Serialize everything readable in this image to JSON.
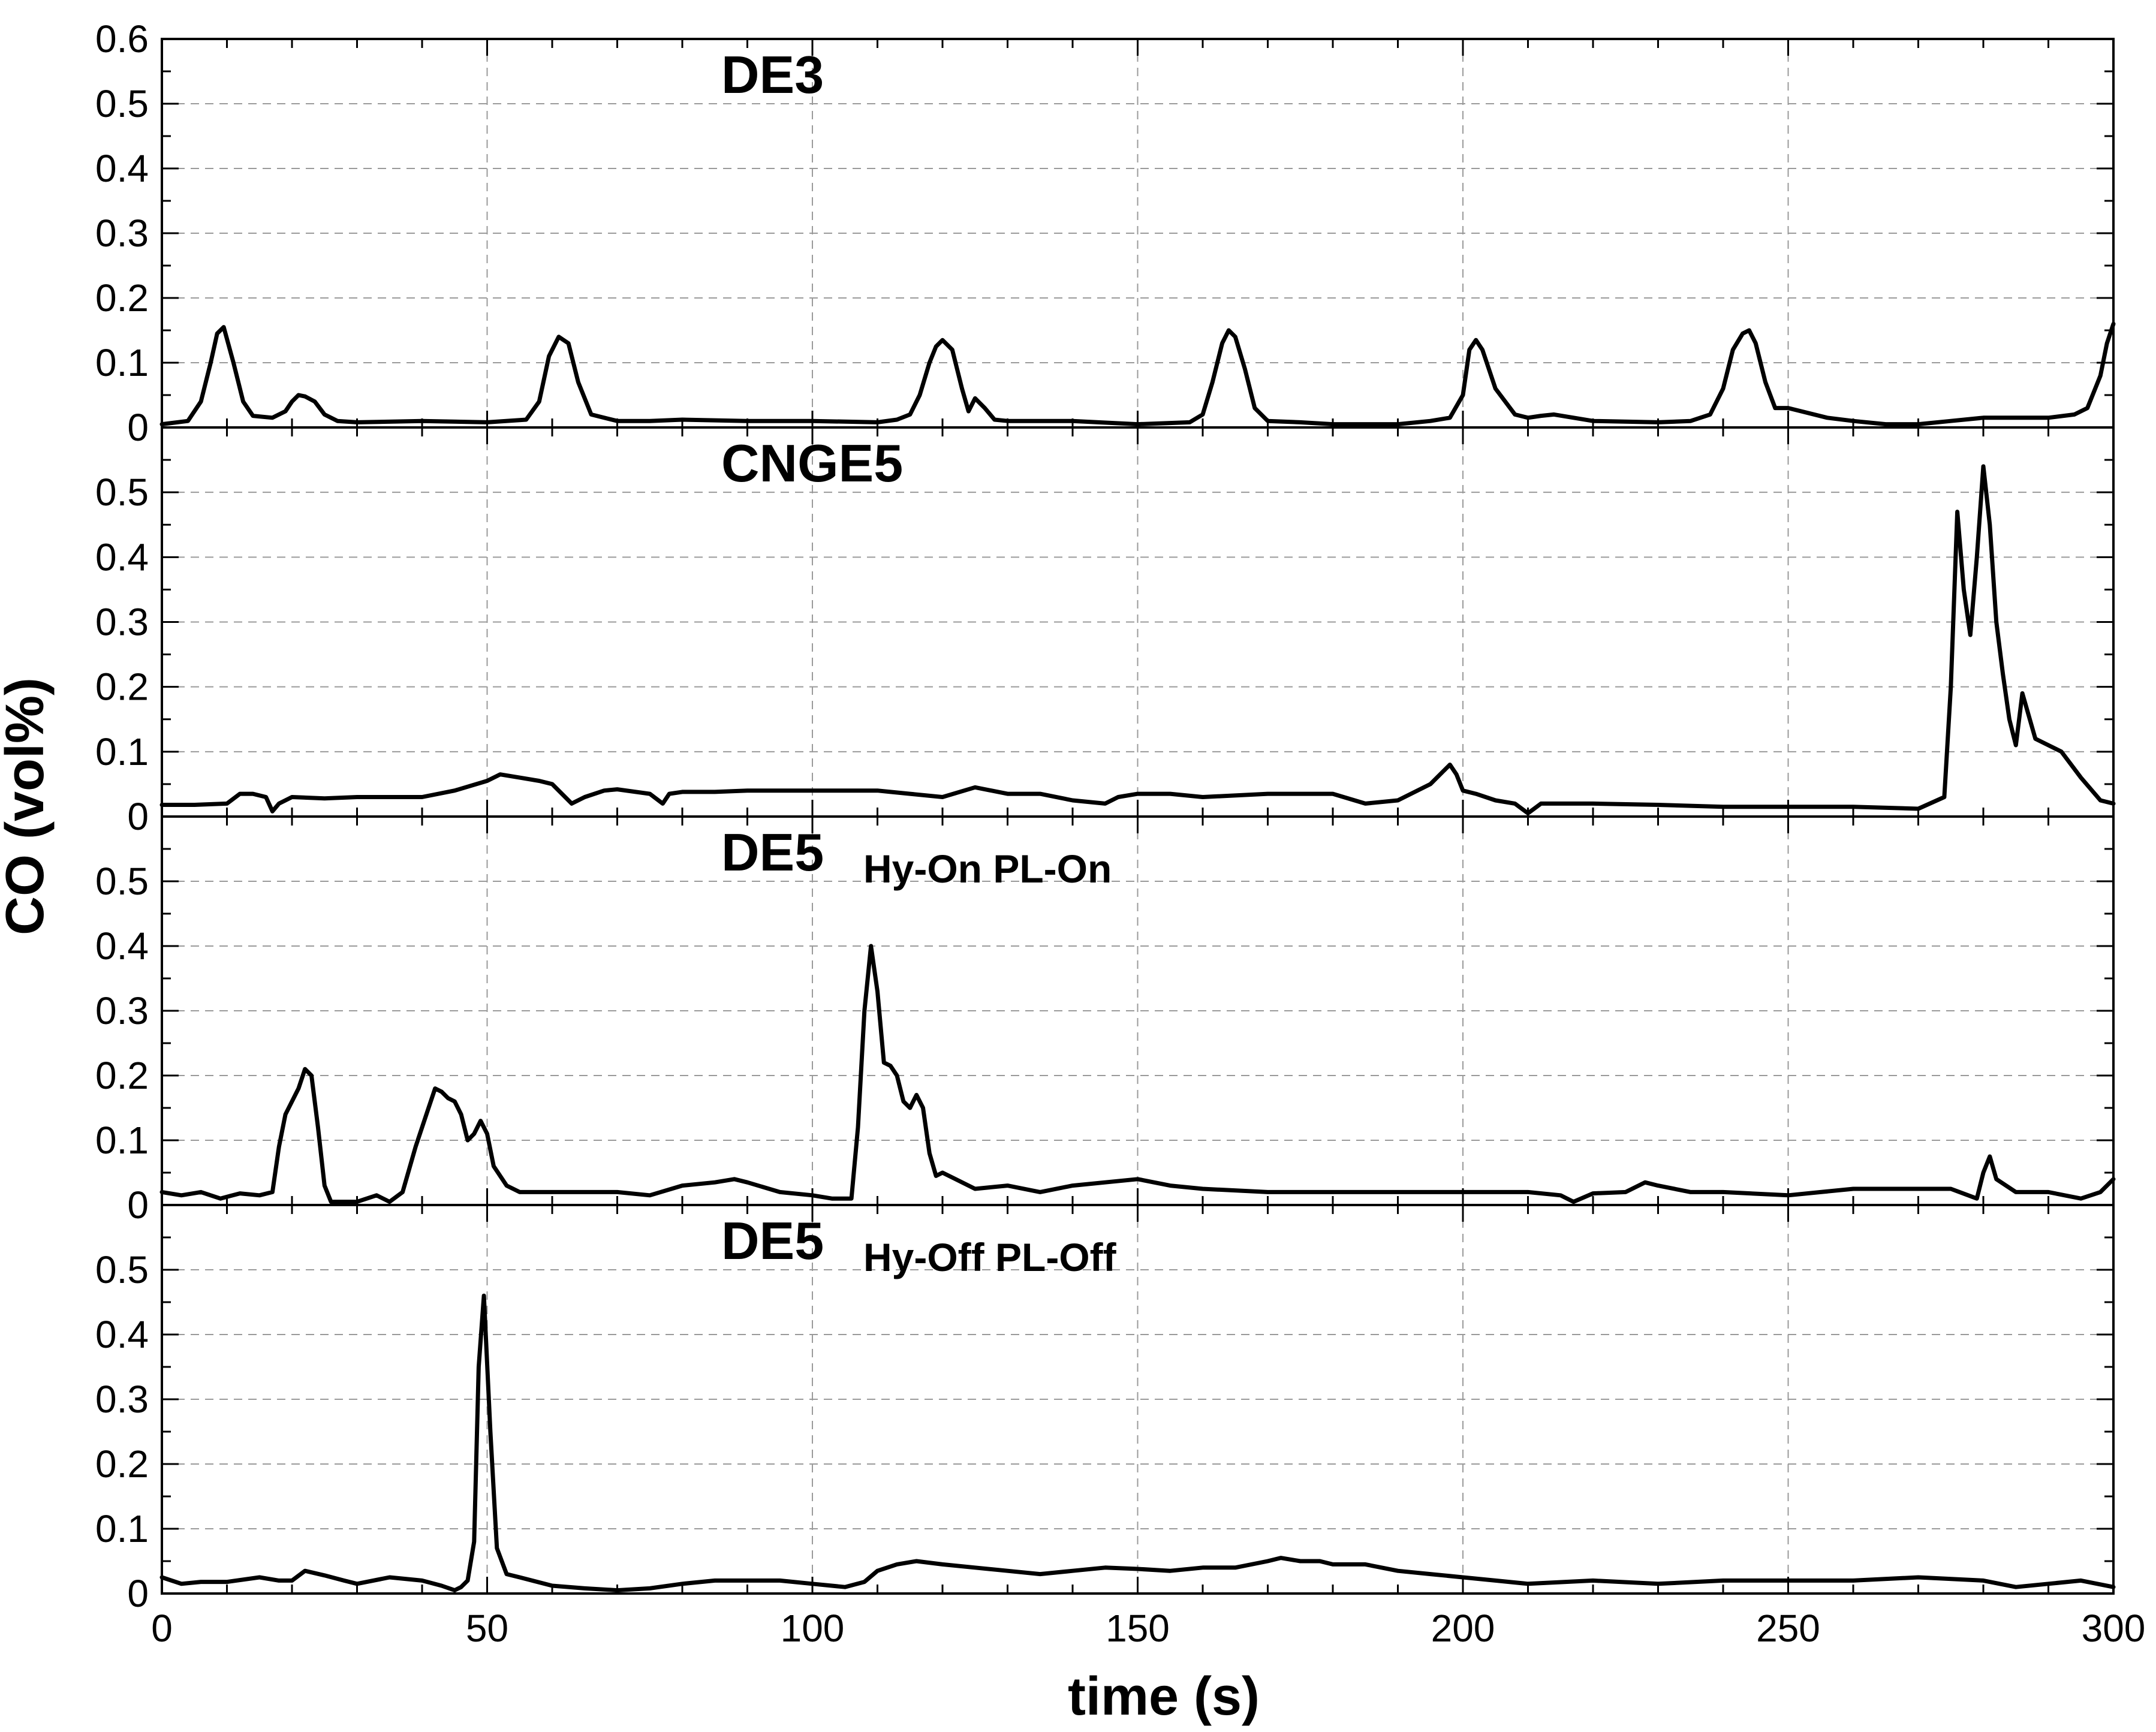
{
  "chart_data": {
    "type": "line",
    "xlabel": "time (s)",
    "ylabel": "CO (vol%)",
    "xlim": [
      0,
      300
    ],
    "xticks": [
      0,
      50,
      100,
      150,
      200,
      250,
      300
    ],
    "grid": true,
    "panels": [
      {
        "title": "DE3",
        "subtitle": "",
        "ylim": [
          0,
          0.6
        ],
        "yticks": [
          0,
          0.1,
          0.2,
          0.3,
          0.4,
          0.5,
          0.6
        ],
        "ytick_labels": [
          "0",
          "0.1",
          "0.2",
          "0.3",
          "0.4",
          "0.5",
          "0.6"
        ],
        "series": [
          {
            "x": [
              0,
              4,
              6,
              7.5,
              8.5,
              9.5,
              11,
              12.5,
              14,
              17,
              19,
              20,
              21,
              22,
              23.5,
              25,
              27,
              30,
              40,
              50,
              56,
              58,
              59.5,
              61,
              62.5,
              64,
              66,
              70,
              75,
              80,
              90,
              100,
              110,
              113,
              115,
              116.5,
              118,
              119,
              120,
              121.5,
              123,
              124,
              125,
              126.5,
              128,
              130,
              140,
              150,
              158,
              160,
              161.5,
              163,
              164,
              165,
              166.5,
              168,
              170,
              175,
              180,
              185,
              190,
              195,
              198,
              200,
              201,
              202,
              203,
              205,
              208,
              210,
              212,
              214,
              220,
              230,
              235,
              238,
              240,
              241.5,
              243,
              244,
              245,
              246.5,
              248,
              250,
              252,
              256,
              260,
              265,
              270,
              275,
              280,
              285,
              290,
              294,
              296,
              298,
              299,
              300
            ],
            "y": [
              0.005,
              0.01,
              0.04,
              0.1,
              0.145,
              0.155,
              0.1,
              0.04,
              0.018,
              0.015,
              0.025,
              0.04,
              0.05,
              0.048,
              0.04,
              0.02,
              0.01,
              0.008,
              0.01,
              0.008,
              0.012,
              0.04,
              0.11,
              0.14,
              0.13,
              0.07,
              0.02,
              0.01,
              0.01,
              0.012,
              0.01,
              0.01,
              0.008,
              0.012,
              0.02,
              0.05,
              0.1,
              0.125,
              0.135,
              0.12,
              0.06,
              0.025,
              0.045,
              0.03,
              0.012,
              0.01,
              0.01,
              0.005,
              0.008,
              0.02,
              0.07,
              0.13,
              0.15,
              0.14,
              0.09,
              0.03,
              0.01,
              0.008,
              0.005,
              0.005,
              0.005,
              0.01,
              0.015,
              0.05,
              0.12,
              0.135,
              0.12,
              0.06,
              0.02,
              0.015,
              0.018,
              0.02,
              0.01,
              0.008,
              0.01,
              0.02,
              0.06,
              0.12,
              0.145,
              0.15,
              0.13,
              0.07,
              0.03,
              0.03,
              0.025,
              0.015,
              0.01,
              0.005,
              0.005,
              0.01,
              0.015,
              0.015,
              0.015,
              0.02,
              0.03,
              0.08,
              0.13,
              0.16
            ]
          }
        ]
      },
      {
        "title": "CNGE5",
        "subtitle": "",
        "ylim": [
          0,
          0.6
        ],
        "yticks": [
          0,
          0.1,
          0.2,
          0.3,
          0.4,
          0.5
        ],
        "ytick_labels": [
          "0",
          "0.1",
          "0.2",
          "0.3",
          "0.4",
          "0.5"
        ],
        "series": [
          {
            "x": [
              0,
              5,
              10,
              12,
              14,
              16,
              17,
              18,
              20,
              25,
              30,
              35,
              40,
              45,
              50,
              52,
              55,
              58,
              60,
              63,
              65,
              68,
              70,
              75,
              77,
              78,
              80,
              85,
              90,
              100,
              110,
              112,
              115,
              120,
              125,
              130,
              135,
              140,
              145,
              147,
              150,
              155,
              160,
              170,
              180,
              185,
              190,
              195,
              197,
              198,
              199,
              200,
              202,
              205,
              208,
              210,
              212,
              220,
              230,
              240,
              250,
              260,
              270,
              274,
              275,
              276,
              277,
              278,
              279,
              280,
              281,
              282,
              283,
              284,
              285,
              286,
              288,
              290,
              292,
              295,
              298,
              300
            ],
            "y": [
              0.018,
              0.018,
              0.02,
              0.035,
              0.035,
              0.03,
              0.008,
              0.02,
              0.03,
              0.028,
              0.03,
              0.03,
              0.03,
              0.04,
              0.055,
              0.065,
              0.06,
              0.055,
              0.05,
              0.02,
              0.03,
              0.04,
              0.042,
              0.035,
              0.02,
              0.035,
              0.038,
              0.038,
              0.04,
              0.04,
              0.04,
              0.038,
              0.035,
              0.03,
              0.045,
              0.035,
              0.035,
              0.025,
              0.02,
              0.03,
              0.035,
              0.035,
              0.03,
              0.035,
              0.035,
              0.02,
              0.025,
              0.05,
              0.07,
              0.08,
              0.065,
              0.04,
              0.035,
              0.025,
              0.02,
              0.005,
              0.02,
              0.02,
              0.018,
              0.015,
              0.015,
              0.015,
              0.012,
              0.03,
              0.2,
              0.47,
              0.35,
              0.28,
              0.4,
              0.54,
              0.45,
              0.3,
              0.22,
              0.15,
              0.11,
              0.19,
              0.12,
              0.11,
              0.1,
              0.06,
              0.025,
              0.02
            ]
          }
        ]
      },
      {
        "title": "DE5",
        "subtitle": "Hy-On PL-On",
        "ylim": [
          0,
          0.6
        ],
        "yticks": [
          0,
          0.1,
          0.2,
          0.3,
          0.4,
          0.5
        ],
        "ytick_labels": [
          "0",
          "0.1",
          "0.2",
          "0.3",
          "0.4",
          "0.5"
        ],
        "series": [
          {
            "x": [
              0,
              3,
              6,
              9,
              12,
              15,
              17,
              18,
              19,
              20,
              21,
              22,
              23,
              24,
              25,
              26,
              27,
              30,
              33,
              35,
              37,
              39,
              40,
              41,
              42,
              43,
              44,
              45,
              46,
              47,
              48,
              49,
              50,
              51,
              53,
              55,
              60,
              65,
              70,
              75,
              80,
              85,
              88,
              90,
              95,
              100,
              103,
              106,
              107,
              108,
              109,
              110,
              111,
              112,
              113,
              114,
              115,
              116,
              117,
              118,
              119,
              120,
              122,
              125,
              130,
              135,
              140,
              145,
              150,
              155,
              160,
              170,
              180,
              190,
              200,
              210,
              215,
              217,
              220,
              225,
              228,
              230,
              235,
              240,
              250,
              255,
              260,
              270,
              275,
              279,
              280,
              281,
              282,
              285,
              290,
              295,
              298,
              300
            ],
            "y": [
              0.02,
              0.015,
              0.02,
              0.01,
              0.018,
              0.015,
              0.02,
              0.09,
              0.14,
              0.16,
              0.18,
              0.21,
              0.2,
              0.12,
              0.03,
              0.005,
              0.005,
              0.005,
              0.015,
              0.005,
              0.02,
              0.09,
              0.12,
              0.15,
              0.18,
              0.175,
              0.165,
              0.16,
              0.14,
              0.1,
              0.11,
              0.13,
              0.11,
              0.06,
              0.03,
              0.02,
              0.02,
              0.02,
              0.02,
              0.015,
              0.03,
              0.035,
              0.04,
              0.035,
              0.02,
              0.015,
              0.01,
              0.01,
              0.12,
              0.3,
              0.4,
              0.33,
              0.22,
              0.215,
              0.2,
              0.16,
              0.15,
              0.17,
              0.15,
              0.08,
              0.045,
              0.05,
              0.04,
              0.025,
              0.03,
              0.02,
              0.03,
              0.035,
              0.04,
              0.03,
              0.025,
              0.02,
              0.02,
              0.02,
              0.02,
              0.02,
              0.015,
              0.005,
              0.018,
              0.02,
              0.035,
              0.03,
              0.02,
              0.02,
              0.015,
              0.02,
              0.025,
              0.025,
              0.025,
              0.01,
              0.05,
              0.075,
              0.04,
              0.02,
              0.02,
              0.01,
              0.02,
              0.04
            ]
          }
        ]
      },
      {
        "title": "DE5",
        "subtitle": "Hy-Off PL-Off",
        "ylim": [
          0,
          0.6
        ],
        "yticks": [
          0,
          0.1,
          0.2,
          0.3,
          0.4,
          0.5
        ],
        "ytick_labels": [
          "0",
          "0.1",
          "0.2",
          "0.3",
          "0.4",
          "0.5"
        ],
        "series": [
          {
            "x": [
              0,
              3,
              6,
              10,
              15,
              18,
              20,
              22,
              25,
              28,
              30,
              35,
              40,
              43,
              45,
              46,
              47,
              48,
              48.7,
              49.5,
              50.5,
              51.5,
              53,
              55,
              60,
              65,
              70,
              75,
              80,
              85,
              90,
              95,
              100,
              105,
              108,
              110,
              113,
              116,
              120,
              125,
              130,
              135,
              140,
              145,
              150,
              155,
              160,
              165,
              170,
              172,
              175,
              178,
              180,
              185,
              190,
              195,
              200,
              205,
              210,
              220,
              230,
              240,
              250,
              260,
              270,
              280,
              285,
              290,
              295,
              300
            ],
            "y": [
              0.025,
              0.015,
              0.018,
              0.018,
              0.025,
              0.02,
              0.02,
              0.035,
              0.028,
              0.02,
              0.015,
              0.025,
              0.02,
              0.012,
              0.005,
              0.01,
              0.02,
              0.08,
              0.35,
              0.46,
              0.25,
              0.07,
              0.03,
              0.025,
              0.012,
              0.008,
              0.005,
              0.008,
              0.015,
              0.02,
              0.02,
              0.02,
              0.015,
              0.01,
              0.018,
              0.035,
              0.045,
              0.05,
              0.045,
              0.04,
              0.035,
              0.03,
              0.035,
              0.04,
              0.038,
              0.035,
              0.04,
              0.04,
              0.05,
              0.055,
              0.05,
              0.05,
              0.045,
              0.045,
              0.035,
              0.03,
              0.025,
              0.02,
              0.015,
              0.02,
              0.015,
              0.02,
              0.02,
              0.02,
              0.025,
              0.02,
              0.01,
              0.015,
              0.02,
              0.01
            ]
          }
        ]
      }
    ]
  }
}
